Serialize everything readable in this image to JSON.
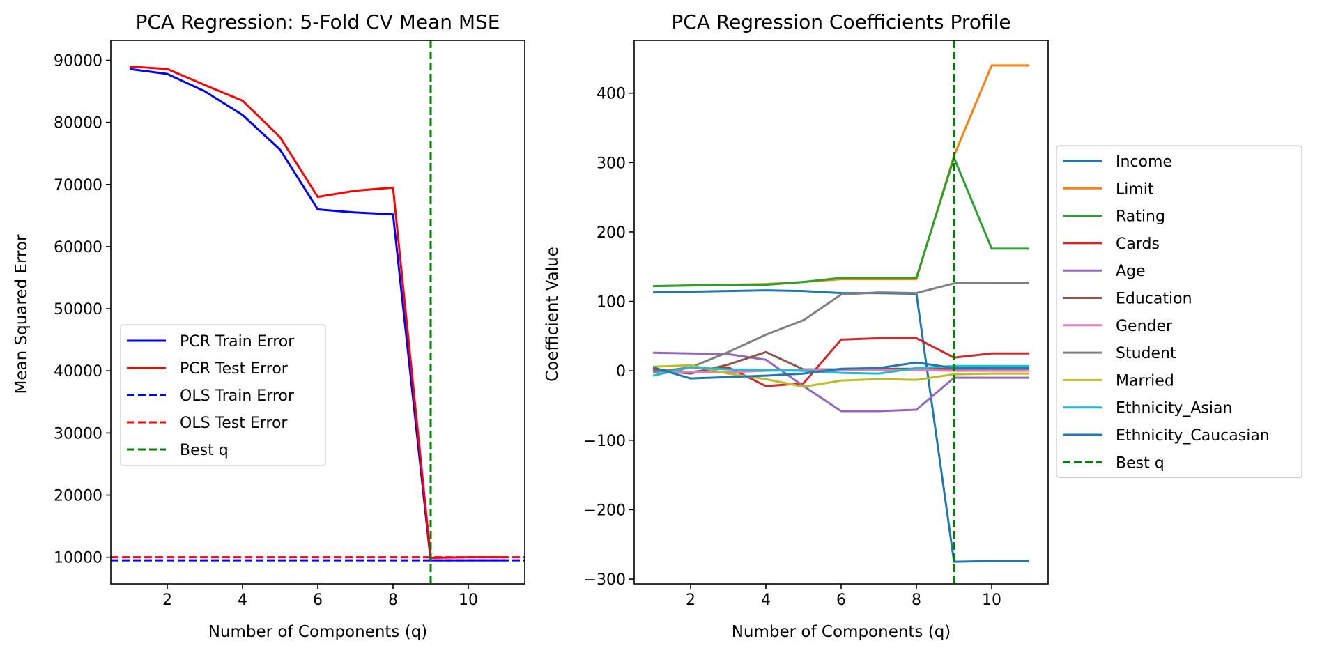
{
  "chart_data": [
    {
      "type": "line",
      "title": "PCA Regression: 5-Fold CV Mean MSE",
      "xlabel": "Number of Components (q)",
      "ylabel": "Mean Squared Error",
      "xlim": [
        0.5,
        11.5
      ],
      "ylim": [
        5700,
        93200
      ],
      "xticks": [
        2,
        4,
        6,
        8,
        10
      ],
      "yticks": [
        10000,
        20000,
        30000,
        40000,
        50000,
        60000,
        70000,
        80000,
        90000
      ],
      "x": [
        1,
        2,
        3,
        4,
        5,
        6,
        7,
        8,
        9,
        10,
        11
      ],
      "series": [
        {
          "name": "PCR Train Error",
          "color": "#0000ff",
          "dash": "solid",
          "values": [
            88600,
            87800,
            85000,
            81200,
            75600,
            66000,
            65500,
            65200,
            9500,
            9500,
            9500
          ]
        },
        {
          "name": "PCR Test Error",
          "color": "#ff0000",
          "dash": "solid",
          "values": [
            89000,
            88600,
            86000,
            83500,
            77600,
            68000,
            69000,
            69500,
            9900,
            10000,
            10000
          ]
        },
        {
          "name": "OLS Train Error",
          "color": "#0000ff",
          "dash": "dashed",
          "hline": 9500
        },
        {
          "name": "OLS Test Error",
          "color": "#ff0000",
          "dash": "dashed",
          "hline": 10000
        },
        {
          "name": "Best q",
          "color": "#008000",
          "dash": "dashed",
          "vline": 9
        }
      ],
      "legend_position": "center-left"
    },
    {
      "type": "line",
      "title": "PCA Regression Coefficients Profile",
      "xlabel": "Number of Components (q)",
      "ylabel": "Coefficient Value",
      "xlim": [
        0.5,
        11.5
      ],
      "ylim": [
        -307,
        476
      ],
      "xticks": [
        2,
        4,
        6,
        8,
        10
      ],
      "yticks": [
        -300,
        -200,
        -100,
        0,
        100,
        200,
        300,
        400
      ],
      "x": [
        1,
        2,
        3,
        4,
        5,
        6,
        7,
        8,
        9,
        10,
        11
      ],
      "series": [
        {
          "name": "Income",
          "color": "#1f77b4",
          "values": [
            113,
            114,
            115,
            116,
            115,
            112,
            112,
            111,
            -275,
            -274,
            -274
          ]
        },
        {
          "name": "Limit",
          "color": "#ff7f0e",
          "values": [
            122,
            123,
            124,
            125,
            128,
            132,
            132,
            132,
            310,
            440,
            440
          ]
        },
        {
          "name": "Rating",
          "color": "#2ca02c",
          "values": [
            122,
            123,
            124,
            124,
            128,
            134,
            134,
            134,
            307,
            176,
            176
          ]
        },
        {
          "name": "Cards",
          "color": "#d62728",
          "values": [
            2,
            -2,
            5,
            -22,
            -18,
            45,
            47,
            47,
            19,
            25,
            25
          ]
        },
        {
          "name": "Age",
          "color": "#9467bd",
          "values": [
            26,
            25,
            24,
            16,
            -22,
            -58,
            -58,
            -56,
            -10,
            -10,
            -10
          ]
        },
        {
          "name": "Education",
          "color": "#8c564b",
          "values": [
            1,
            -4,
            9,
            27,
            2,
            2,
            3,
            3,
            3,
            3,
            3
          ]
        },
        {
          "name": "Gender",
          "color": "#e377c2",
          "values": [
            -1,
            -2,
            -2,
            0,
            1,
            1,
            1,
            1,
            0,
            0,
            0
          ]
        },
        {
          "name": "Student",
          "color": "#7f7f7f",
          "values": [
            -2,
            5,
            27,
            52,
            73,
            110,
            113,
            112,
            126,
            127,
            127
          ]
        },
        {
          "name": "Married",
          "color": "#bcbd22",
          "values": [
            6,
            8,
            -4,
            -12,
            -23,
            -14,
            -12,
            -13,
            -5,
            -4,
            -4
          ]
        },
        {
          "name": "Ethnicity_Asian",
          "color": "#17becf",
          "values": [
            -7,
            5,
            2,
            1,
            0,
            -3,
            -4,
            4,
            7,
            7,
            7
          ]
        },
        {
          "name": "Ethnicity_Caucasian",
          "color": "#1f77b4",
          "values": [
            5,
            -11,
            -9,
            -7,
            -4,
            3,
            4,
            12,
            4,
            4,
            4
          ]
        },
        {
          "name": "Best q",
          "color": "#008000",
          "dash": "dashed",
          "vline": 9
        }
      ],
      "legend_position": "outside-right"
    }
  ]
}
